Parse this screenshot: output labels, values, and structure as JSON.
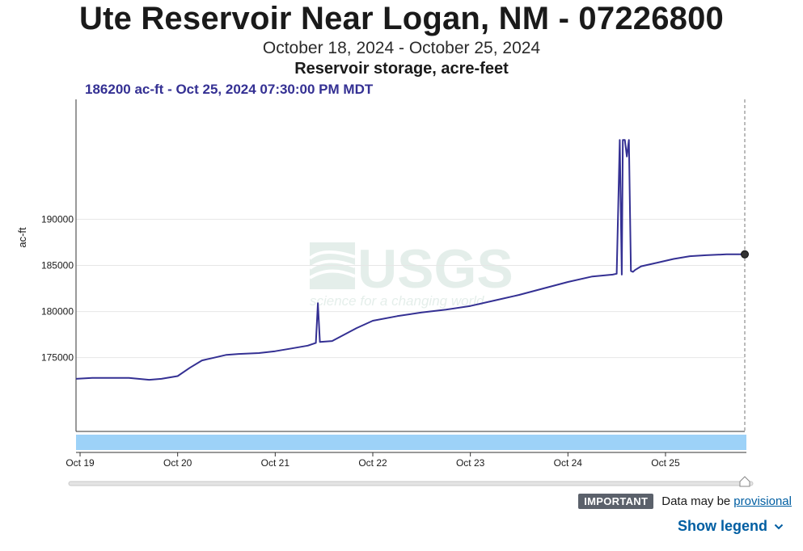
{
  "header": {
    "title": "Ute Reservoir Near Logan, NM - 07226800",
    "date_range": "October 18, 2024 - October 25, 2024",
    "parameter": "Reservoir storage, acre-feet",
    "readout": "186200 ac-ft - Oct 25, 2024 07:30:00 PM MDT"
  },
  "notice": {
    "badge": "IMPORTANT",
    "text": "Data may be",
    "link": "provisional"
  },
  "legend_toggle": "Show legend",
  "colors": {
    "series": "#343093",
    "brush": "#9dd2f8",
    "grid": "#e6e6e6"
  },
  "chart_data": {
    "type": "line",
    "title": "Ute Reservoir Near Logan, NM - 07226800",
    "ylabel": "ac-ft",
    "ylim": [
      167000,
      203000
    ],
    "yticks": [
      175000,
      180000,
      185000,
      190000
    ],
    "yticklabels": [
      "175000",
      "180000",
      "185000",
      "190000"
    ],
    "xlim": [
      "2024-10-18 23:00",
      "2024-10-25 19:30"
    ],
    "xticks": [
      "2024-10-19 00:00",
      "2024-10-20 00:00",
      "2024-10-21 00:00",
      "2024-10-22 00:00",
      "2024-10-23 00:00",
      "2024-10-24 00:00",
      "2024-10-25 00:00"
    ],
    "xticklabels": [
      "Oct 19",
      "Oct 20",
      "Oct 21",
      "Oct 22",
      "Oct 23",
      "Oct 24",
      "Oct 25"
    ],
    "grid": true,
    "series": [
      {
        "x": [
          "2024-10-18 23:00",
          "2024-10-19 03:00",
          "2024-10-19 07:00",
          "2024-10-19 12:00",
          "2024-10-19 17:00",
          "2024-10-19 20:00",
          "2024-10-20 00:00",
          "2024-10-20 03:00",
          "2024-10-20 06:00",
          "2024-10-20 09:00",
          "2024-10-20 12:00",
          "2024-10-20 15:00",
          "2024-10-20 20:00",
          "2024-10-21 00:00",
          "2024-10-21 04:00",
          "2024-10-21 08:00",
          "2024-10-21 10:00",
          "2024-10-21 10:30",
          "2024-10-21 11:00",
          "2024-10-21 14:00",
          "2024-10-21 17:00",
          "2024-10-21 20:00",
          "2024-10-22 00:00",
          "2024-10-22 06:00",
          "2024-10-22 12:00",
          "2024-10-22 18:00",
          "2024-10-23 00:00",
          "2024-10-23 06:00",
          "2024-10-23 12:00",
          "2024-10-23 18:00",
          "2024-10-24 00:00",
          "2024-10-24 06:00",
          "2024-10-24 11:00",
          "2024-10-24 12:00",
          "2024-10-24 12:45",
          "2024-10-24 13:15",
          "2024-10-24 13:30",
          "2024-10-24 14:00",
          "2024-10-24 14:30",
          "2024-10-24 15:00",
          "2024-10-24 15:30",
          "2024-10-24 16:00",
          "2024-10-24 16:15",
          "2024-10-24 16:30",
          "2024-10-24 18:00",
          "2024-10-24 22:00",
          "2024-10-25 02:00",
          "2024-10-25 06:00",
          "2024-10-25 10:00",
          "2024-10-25 15:00",
          "2024-10-25 19:30"
        ],
        "y": [
          172700,
          172800,
          172800,
          172800,
          172600,
          172700,
          173000,
          173900,
          174700,
          175000,
          175300,
          175400,
          175500,
          175700,
          176000,
          176300,
          176600,
          180900,
          176700,
          176800,
          177500,
          178200,
          179000,
          179500,
          179900,
          180200,
          180600,
          181200,
          181800,
          182500,
          183200,
          183800,
          184000,
          184100,
          198600,
          184000,
          198600,
          198600,
          196800,
          198600,
          184400,
          184300,
          184400,
          184500,
          184900,
          185300,
          185700,
          186000,
          186100,
          186200,
          186200
        ]
      }
    ]
  }
}
